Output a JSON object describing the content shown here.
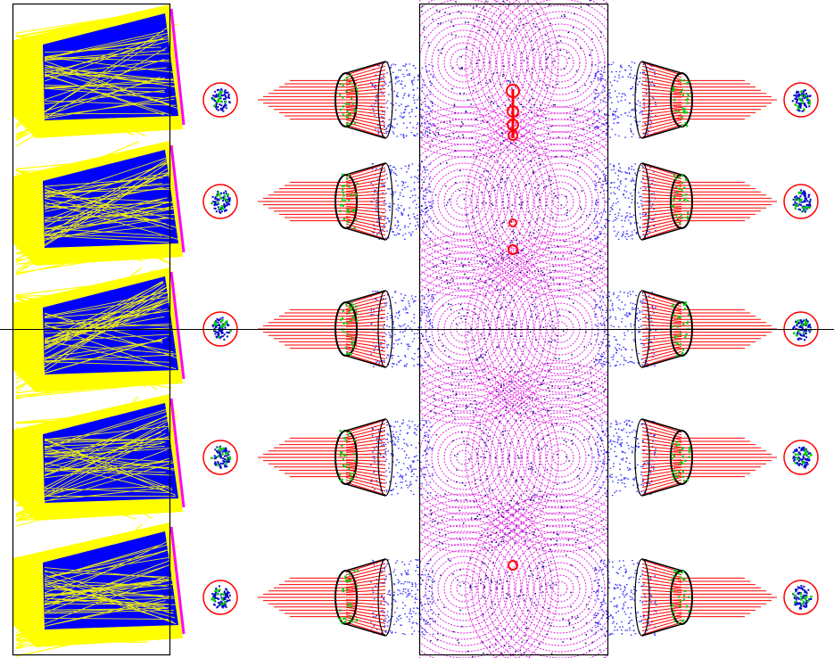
{
  "colors": {
    "background": "#ffffff",
    "frame": "#000000",
    "axis": "#000000",
    "ray_fan_fill": "#ffff00",
    "ray_fan_core": "#0000ff",
    "ray_fan_edge": "#ff00ff",
    "ring_outline": "#ff0000",
    "spot_core": "#0000cc",
    "spot_hit": "#00cc00",
    "cone_outline": "#000000",
    "cone_rays": "#ff0000",
    "beam_lines": "#ff0000",
    "scatter_points": "#0000ff",
    "halo_rings": "#dd00dd",
    "halo_hits": "#000080",
    "channel_markers": "#ff0000"
  },
  "elements": {
    "left_panel": "ray-fan-panel",
    "spot_columns": 2,
    "channel_rows": 5,
    "cones_per_row": 2,
    "halo_columns": 2
  }
}
